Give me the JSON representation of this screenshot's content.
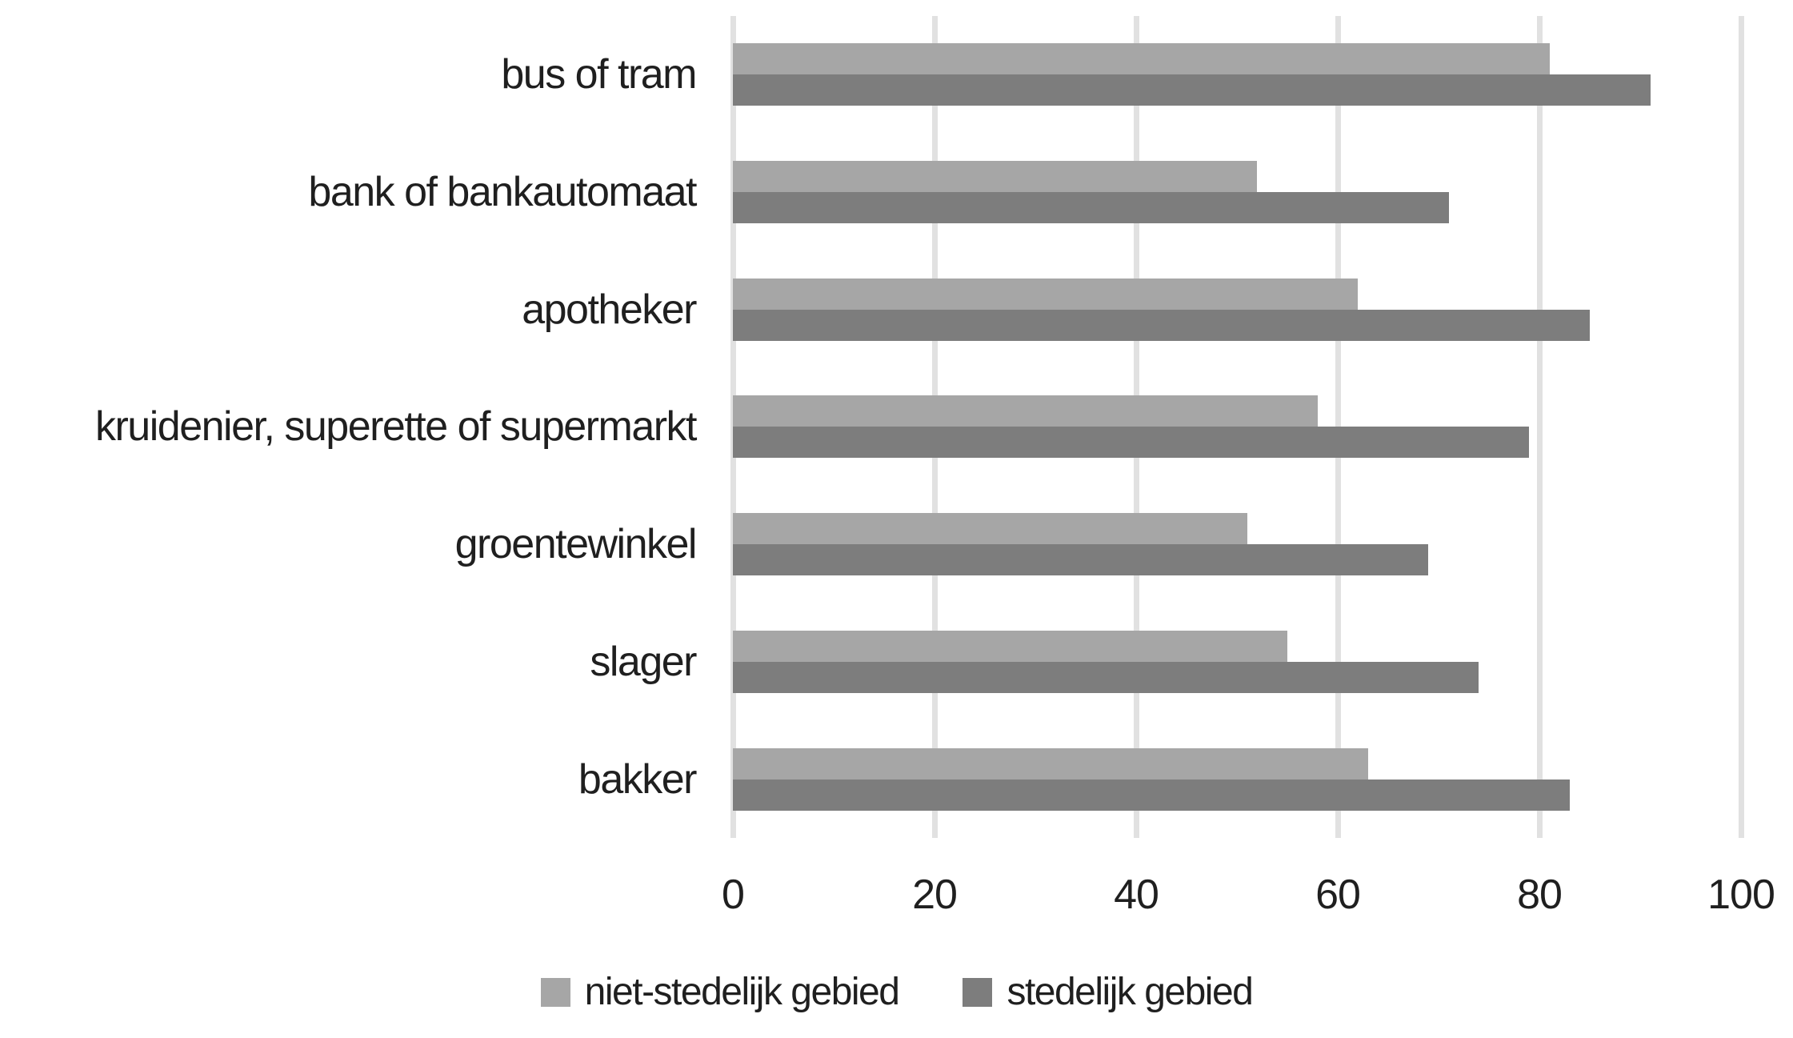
{
  "chart_data": {
    "type": "bar",
    "orientation": "horizontal",
    "title": "",
    "xlabel": "",
    "ylabel": "",
    "categories": [
      "bus of tram",
      "bank of bankautomaat",
      "apotheker",
      "kruidenier, superette of supermarkt",
      "groentewinkel",
      "slager",
      "bakker"
    ],
    "series": [
      {
        "name": "niet-stedelijk gebied",
        "color": "#a6a6a6",
        "values": [
          81,
          52,
          62,
          58,
          51,
          55,
          63
        ]
      },
      {
        "name": "stedelijk gebied",
        "color": "#7d7d7d",
        "values": [
          91,
          71,
          85,
          79,
          69,
          74,
          83
        ]
      }
    ],
    "x_ticks": [
      0,
      20,
      40,
      60,
      80,
      100
    ],
    "xlim": [
      0,
      100
    ],
    "grid": "vertical",
    "gridline_color": "#e1e1e1",
    "legend_position": "bottom",
    "text_color": "#1f1f1f",
    "background_color": "#ffffff"
  }
}
